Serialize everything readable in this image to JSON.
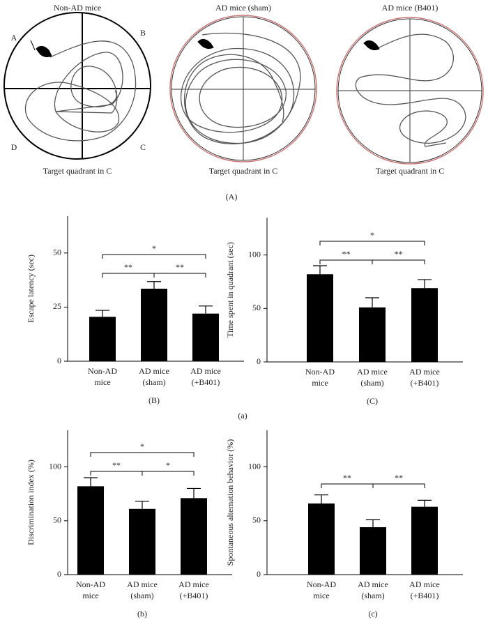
{
  "mazes": [
    {
      "title": "Non-AD mice",
      "caption": "Target quadrant in C",
      "quadrants": [
        "A",
        "B",
        "C",
        "D"
      ]
    },
    {
      "title": "AD mice (sham)",
      "caption": "Target quadrant in C"
    },
    {
      "title": "AD mice (B401)",
      "caption": "Target quadrant in C"
    }
  ],
  "panel_labels": [
    "(A)",
    "(a)"
  ],
  "chart_data": [
    {
      "type": "bar",
      "caption": "(B)",
      "y_label": "Escape latency (sec)",
      "categories": [
        [
          "Non-AD",
          "mice"
        ],
        [
          "AD mice",
          "(sham)"
        ],
        [
          "AD mice",
          "(+B401)"
        ]
      ],
      "values": [
        20.5,
        33.5,
        22
      ],
      "errors": [
        3,
        3.3,
        3.5
      ],
      "color": "#000000",
      "ylim": [
        0,
        67
      ],
      "yticks": [
        0,
        25,
        50
      ],
      "comparisons": [
        {
          "between": [
            0,
            2
          ],
          "label": "*"
        },
        {
          "between": [
            0,
            1
          ],
          "label": "**"
        },
        {
          "between": [
            1,
            2
          ],
          "label": "**"
        }
      ]
    },
    {
      "type": "bar",
      "caption": "(C)",
      "y_label": "Time spent in quadrant (sec)",
      "categories": [
        [
          "Non-AD",
          "mice"
        ],
        [
          "AD mice",
          "(sham)"
        ],
        [
          "AD mice",
          "(+B401)"
        ]
      ],
      "values": [
        82,
        51,
        69
      ],
      "errors": [
        8,
        9,
        8
      ],
      "color": "#000000",
      "ylim": [
        0,
        135
      ],
      "yticks": [
        0,
        50,
        100
      ],
      "comparisons": [
        {
          "between": [
            0,
            2
          ],
          "label": "*"
        },
        {
          "between": [
            0,
            1
          ],
          "label": "**"
        },
        {
          "between": [
            1,
            2
          ],
          "label": "**"
        }
      ]
    },
    {
      "type": "bar",
      "caption": "(b)",
      "y_label": "Discrimination index (%)",
      "categories": [
        [
          "Non-AD",
          "mice"
        ],
        [
          "AD mice",
          "(sham)"
        ],
        [
          "AD mice",
          "(+B401)"
        ]
      ],
      "values": [
        82,
        61,
        71
      ],
      "errors": [
        8,
        7,
        9
      ],
      "color": "#000000",
      "ylim": [
        0,
        134
      ],
      "yticks": [
        0,
        50,
        100
      ],
      "comparisons": [
        {
          "between": [
            0,
            2
          ],
          "label": "*"
        },
        {
          "between": [
            0,
            1
          ],
          "label": "**"
        },
        {
          "between": [
            1,
            2
          ],
          "label": "*"
        }
      ]
    },
    {
      "type": "bar",
      "caption": "(c)",
      "y_label": "Spontaneous alternation behavior (%)",
      "categories": [
        [
          "Non-AD",
          "mice"
        ],
        [
          "AD mice",
          "(sham)"
        ],
        [
          "AD mice",
          "(+B401)"
        ]
      ],
      "values": [
        66,
        44,
        63
      ],
      "errors": [
        8,
        7,
        6
      ],
      "color": "#000000",
      "ylim": [
        0,
        134
      ],
      "yticks": [
        0,
        50,
        100
      ],
      "comparisons": [
        {
          "between": [
            0,
            1
          ],
          "label": "**"
        },
        {
          "between": [
            1,
            2
          ],
          "label": "**"
        }
      ]
    }
  ]
}
